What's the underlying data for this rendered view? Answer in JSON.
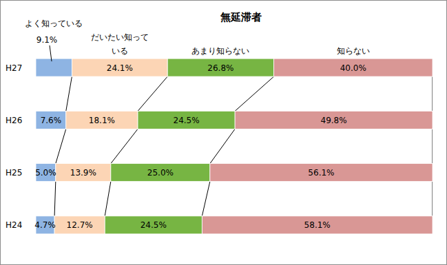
{
  "chart_data": {
    "type": "bar",
    "orientation": "horizontal",
    "stacked": true,
    "title": "無延滞者",
    "categories": [
      "H27",
      "H26",
      "H25",
      "H24"
    ],
    "series": [
      {
        "name": "よく知っている",
        "color": "#8eb4e3",
        "values": [
          9.1,
          7.6,
          5.0,
          4.7
        ],
        "value_labels": [
          "9.1%",
          "7.6%",
          "5.0%",
          "4.7%"
        ]
      },
      {
        "name": "だいたい知っている",
        "color": "#fcd5b5",
        "values": [
          24.1,
          18.1,
          13.9,
          12.7
        ],
        "value_labels": [
          "24.1%",
          "18.1%",
          "13.9%",
          "12.7%"
        ]
      },
      {
        "name": "あまり知らない",
        "color": "#77b543",
        "values": [
          26.8,
          24.5,
          25.0,
          24.5
        ],
        "value_labels": [
          "26.8%",
          "24.5%",
          "25.0%",
          "24.5%"
        ]
      },
      {
        "name": "知らない",
        "color": "#d99795",
        "values": [
          40.0,
          49.8,
          56.1,
          58.1
        ],
        "value_labels": [
          "40.0%",
          "49.8%",
          "56.1%",
          "58.1%"
        ]
      }
    ],
    "xlim": [
      0,
      100
    ],
    "data_labels": true,
    "tick_labels": "y"
  }
}
